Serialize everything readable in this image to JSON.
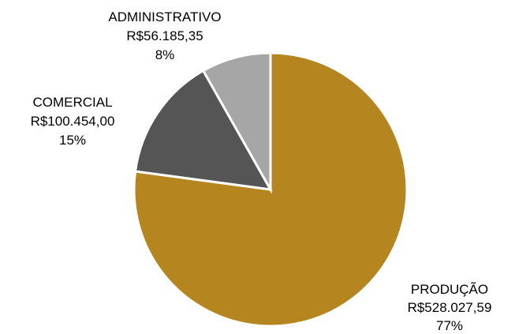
{
  "chart_data": {
    "type": "pie",
    "title": "",
    "currency_prefix": "R$",
    "slices": [
      {
        "label": "PRODUÇÃO",
        "value": 528027.59,
        "value_text": "R$528.027,59",
        "percent_text": "77%",
        "color": "#B5861F"
      },
      {
        "label": "COMERCIAL",
        "value": 100454.0,
        "value_text": "R$100.454,00",
        "percent_text": "15%",
        "color": "#555555"
      },
      {
        "label": "ADMINISTRATIVO",
        "value": 56185.35,
        "value_text": "R$56.185,35",
        "percent_text": "8%",
        "color": "#A6A6A6"
      }
    ],
    "start_angle": "12 o'clock",
    "direction": "clockwise",
    "legend": "none",
    "data_labels": "outside"
  }
}
